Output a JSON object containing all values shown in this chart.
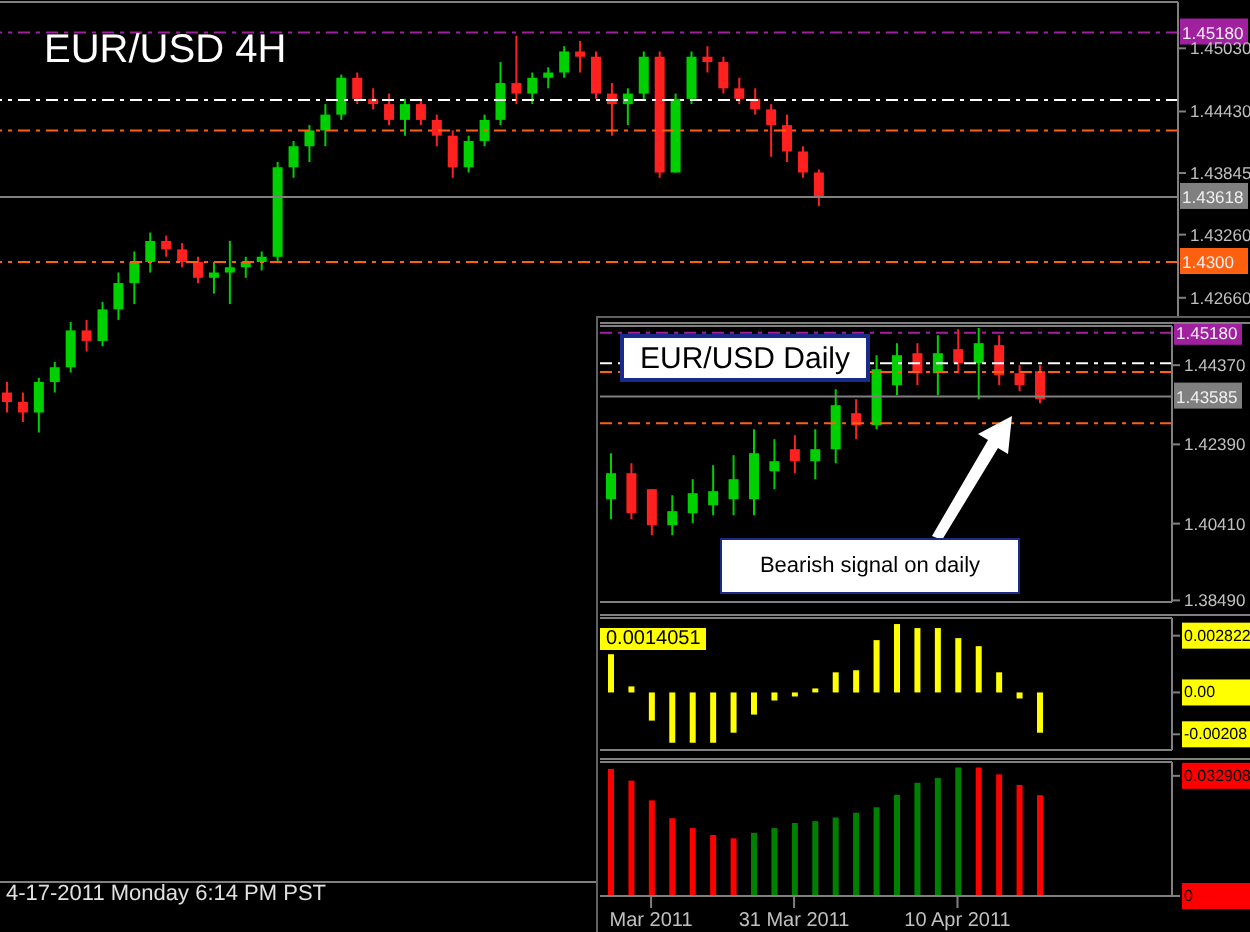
{
  "chart_data": [
    {
      "type": "candlestick",
      "title": "EUR/USD 4H",
      "categories": [
        null,
        null,
        null,
        null,
        null,
        null,
        null,
        null,
        null,
        null,
        null,
        null,
        null,
        null,
        null,
        null,
        null,
        null,
        null,
        null,
        null,
        null,
        null,
        null,
        null,
        null,
        null,
        null,
        null,
        null,
        null,
        null,
        null,
        null,
        null,
        null,
        null,
        null,
        null,
        null,
        null,
        null,
        null,
        null,
        null,
        null,
        null,
        null,
        null,
        null,
        null,
        null,
        null,
        null,
        null,
        null,
        null,
        null,
        null,
        null,
        null,
        null,
        null,
        null,
        null,
        null,
        null,
        null,
        null,
        null,
        null,
        null,
        null,
        null
      ],
      "ohlc": [
        [
          1.4176,
          1.4186,
          1.4157,
          1.4167
        ],
        [
          1.4167,
          1.4176,
          1.4148,
          1.4157
        ],
        [
          1.4157,
          1.419,
          1.4138,
          1.4186
        ],
        [
          1.4186,
          1.4205,
          1.4176,
          1.42
        ],
        [
          1.42,
          1.4243,
          1.4195,
          1.4235
        ],
        [
          1.4235,
          1.4245,
          1.4215,
          1.4225
        ],
        [
          1.4225,
          1.4262,
          1.422,
          1.4255
        ],
        [
          1.4255,
          1.429,
          1.4245,
          1.428
        ],
        [
          1.428,
          1.431,
          1.426,
          1.43
        ],
        [
          1.43,
          1.4328,
          1.429,
          1.432
        ],
        [
          1.432,
          1.4325,
          1.4305,
          1.4312
        ],
        [
          1.4312,
          1.4318,
          1.4295,
          1.43
        ],
        [
          1.43,
          1.4305,
          1.428,
          1.4285
        ],
        [
          1.4285,
          1.43,
          1.427,
          1.429
        ],
        [
          1.429,
          1.432,
          1.426,
          1.4295
        ],
        [
          1.4295,
          1.4305,
          1.4285,
          1.43
        ],
        [
          1.43,
          1.431,
          1.4292,
          1.4305
        ],
        [
          1.4305,
          1.4395,
          1.43,
          1.439
        ],
        [
          1.439,
          1.4415,
          1.438,
          1.441
        ],
        [
          1.441,
          1.443,
          1.4395,
          1.4425
        ],
        [
          1.4425,
          1.445,
          1.441,
          1.444
        ],
        [
          1.444,
          1.4478,
          1.4435,
          1.4475
        ],
        [
          1.4475,
          1.448,
          1.445,
          1.4455
        ],
        [
          1.4455,
          1.4465,
          1.4445,
          1.445
        ],
        [
          1.445,
          1.446,
          1.443,
          1.4435
        ],
        [
          1.4435,
          1.4455,
          1.442,
          1.445
        ],
        [
          1.445,
          1.4455,
          1.443,
          1.4435
        ],
        [
          1.4435,
          1.444,
          1.441,
          1.442
        ],
        [
          1.442,
          1.4425,
          1.438,
          1.439
        ],
        [
          1.439,
          1.442,
          1.4385,
          1.4415
        ],
        [
          1.4415,
          1.444,
          1.441,
          1.4435
        ],
        [
          1.4435,
          1.449,
          1.443,
          1.447
        ],
        [
          1.447,
          1.4515,
          1.445,
          1.446
        ],
        [
          1.446,
          1.448,
          1.445,
          1.4475
        ],
        [
          1.4475,
          1.4485,
          1.4465,
          1.448
        ],
        [
          1.448,
          1.4505,
          1.4475,
          1.45
        ],
        [
          1.45,
          1.451,
          1.448,
          1.4495
        ],
        [
          1.4495,
          1.45,
          1.4455,
          1.446
        ],
        [
          1.446,
          1.447,
          1.442,
          1.445
        ],
        [
          1.445,
          1.4465,
          1.443,
          1.446
        ],
        [
          1.446,
          1.45,
          1.4455,
          1.4495
        ],
        [
          1.4495,
          1.45,
          1.438,
          1.4385
        ],
        [
          1.4385,
          1.446,
          1.4385,
          1.4455
        ],
        [
          1.4455,
          1.45,
          1.445,
          1.4495
        ],
        [
          1.4495,
          1.4505,
          1.448,
          1.449
        ],
        [
          1.449,
          1.4495,
          1.446,
          1.4465
        ],
        [
          1.4465,
          1.4475,
          1.445,
          1.4455
        ],
        [
          1.4455,
          1.4465,
          1.444,
          1.4445
        ],
        [
          1.4445,
          1.445,
          1.44,
          1.443
        ],
        [
          1.443,
          1.444,
          1.4395,
          1.4405
        ],
        [
          1.4405,
          1.441,
          1.438,
          1.4385
        ],
        [
          1.4385,
          1.4388,
          1.4353,
          1.4362
        ],
        null,
        null,
        null,
        null,
        null,
        null,
        null,
        null,
        null,
        null,
        null,
        null,
        null,
        null,
        null,
        null,
        null,
        null,
        null,
        null,
        null,
        null
      ],
      "ylim": [
        1.3711,
        1.4547
      ],
      "yticks": [
        {
          "value": 1.4266,
          "label": "1.42660"
        },
        {
          "value": 1.4326,
          "label": "1.43260"
        },
        1.43845,
        {
          "value": 1.4443,
          "label": "1.44430"
        },
        {
          "value": 1.4503,
          "label": "1.45030"
        }
      ],
      "ref_lines": [
        {
          "axis": "y",
          "value": 1.4518,
          "label": "1.45180",
          "color": "#a020a0",
          "line_style": "dashed"
        },
        {
          "axis": "y",
          "value": 1.4454,
          "color": "#ffffff",
          "line_style": "dashed"
        },
        {
          "axis": "y",
          "value": 1.4425,
          "color": "#ff6010",
          "line_style": "dashed"
        },
        {
          "axis": "y",
          "value": 1.43618,
          "label": "1.43618",
          "color": "#808080",
          "line_style": "solid"
        },
        {
          "axis": "y",
          "value": 1.43,
          "label": "1.4300",
          "color": "#ff6010",
          "line_style": "dashed"
        }
      ],
      "annotations": [
        "4-17-2011 Monday 6:14 PM PST"
      ]
    },
    {
      "type": "candlestick",
      "title": "EUR/USD Daily",
      "categories": [
        null,
        null,
        null,
        null,
        null,
        null,
        null,
        null,
        null,
        null,
        null,
        null,
        null,
        null,
        null,
        null,
        null,
        null,
        null,
        null,
        null,
        null,
        null,
        null,
        null,
        null,
        null,
        null
      ],
      "ohlc": [
        [
          1.4102,
          1.4217,
          1.4052,
          1.4167
        ],
        [
          1.4167,
          1.4192,
          1.4052,
          1.4067
        ],
        [
          1.4127,
          1.4127,
          1.4012,
          1.4037
        ],
        [
          1.4037,
          1.4112,
          1.4012,
          1.4072
        ],
        [
          1.4067,
          1.4152,
          1.4042,
          1.4117
        ],
        [
          1.4087,
          1.4187,
          1.4062,
          1.4122
        ],
        [
          1.4102,
          1.4212,
          1.4062,
          1.4152
        ],
        [
          1.4102,
          1.4277,
          1.4062,
          1.4217
        ],
        [
          1.4172,
          1.4252,
          1.4127,
          1.4197
        ],
        [
          1.4227,
          1.4262,
          1.4167,
          1.4197
        ],
        [
          1.4197,
          1.4277,
          1.4152,
          1.4227
        ],
        [
          1.4227,
          1.4377,
          1.4192,
          1.4337
        ],
        [
          1.4317,
          1.4352,
          1.4252,
          1.4287
        ],
        [
          1.4287,
          1.4462,
          1.4277,
          1.4427
        ],
        [
          1.4387,
          1.4492,
          1.4362,
          1.4462
        ],
        [
          1.4467,
          1.4492,
          1.4387,
          1.4417
        ],
        [
          1.4417,
          1.4512,
          1.4362,
          1.4467
        ],
        [
          1.4477,
          1.4527,
          1.4417,
          1.4442
        ],
        [
          1.4442,
          1.453,
          1.4352,
          1.4492
        ],
        [
          1.4487,
          1.4512,
          1.4387,
          1.4412
        ],
        [
          1.4417,
          1.4437,
          1.4372,
          1.4387
        ],
        [
          1.4422,
          1.4437,
          1.4342,
          1.4352
        ],
        null,
        null,
        null,
        null,
        null,
        null
      ],
      "ylim": [
        1.3845,
        1.4535
      ],
      "yticks": [
        {
          "value": 1.4437,
          "label": "1.44370"
        },
        {
          "value": 1.4239,
          "label": "1.42390"
        },
        {
          "value": 1.4041,
          "label": "1.40410"
        },
        {
          "value": 1.3849,
          "label": "1.38490"
        }
      ],
      "ref_lines": [
        {
          "axis": "y",
          "value": 1.4518,
          "label": "1.45180",
          "color": "#a020a0",
          "line_style": "dashed"
        },
        {
          "axis": "y",
          "value": 1.4442,
          "color": "#ffffff",
          "line_style": "dashed"
        },
        {
          "axis": "y",
          "value": 1.442,
          "color": "#ff6010",
          "line_style": "dashed"
        },
        {
          "axis": "y",
          "value": 1.43585,
          "label": "1.43585",
          "color": "#808080",
          "line_style": "solid"
        },
        {
          "axis": "y",
          "value": 1.4292,
          "color": "#ff6010",
          "line_style": "dashed"
        }
      ],
      "annotations": [
        "Bearish signal on daily"
      ]
    },
    {
      "type": "bar",
      "color": "#ffff00",
      "categories": [
        null,
        null,
        null,
        null,
        null,
        null,
        null,
        null,
        null,
        null,
        null,
        null,
        null,
        null,
        null,
        null,
        null,
        null,
        null,
        null,
        null,
        null,
        null,
        null,
        null,
        null,
        null,
        null
      ],
      "values": [
        0.0019,
        0.0003,
        -0.0014,
        -0.0025,
        -0.0025,
        -0.0025,
        -0.002,
        -0.0011,
        -0.0004,
        -0.0002,
        0.0002,
        0.001,
        0.0011,
        0.0026,
        0.0034,
        0.0032,
        0.0032,
        0.0027,
        0.0023,
        0.001,
        -0.0003,
        -0.002,
        null,
        null,
        null,
        null,
        null,
        null
      ],
      "ylim": [
        -0.00286,
        0.0037
      ],
      "yticks": [
        0.002822,
        {
          "value": 0,
          "label": "0.00"
        },
        -0.00208
      ],
      "annotations": [
        "0.0014051"
      ]
    },
    {
      "type": "bar",
      "categories": [
        null,
        null,
        "Mar 2011",
        null,
        null,
        null,
        null,
        null,
        null,
        "31 Mar 2011",
        null,
        null,
        null,
        null,
        null,
        null,
        null,
        "10 Apr 2011",
        null,
        null,
        null,
        null,
        null,
        null,
        null,
        null,
        null,
        null
      ],
      "values": [
        0.0348,
        0.0316,
        0.0262,
        0.0213,
        0.0186,
        0.0167,
        0.0158,
        0.0173,
        0.0186,
        0.02,
        0.0205,
        0.0215,
        0.0228,
        0.0243,
        0.0277,
        0.031,
        0.0323,
        0.0352,
        0.0352,
        0.0333,
        0.0304,
        0.0276,
        null,
        null,
        null,
        null,
        null,
        null
      ],
      "colors": [
        "#ff0000",
        "#ff0000",
        "#ff0000",
        "#ff0000",
        "#ff0000",
        "#ff0000",
        "#ff0000",
        "#008000",
        "#008000",
        "#008000",
        "#008000",
        "#008000",
        "#008000",
        "#008000",
        "#008000",
        "#008000",
        "#008000",
        "#008000",
        "#ff0000",
        "#ff0000",
        "#ff0000",
        "#ff0000",
        null,
        null,
        null,
        null,
        null,
        null
      ],
      "ylim": [
        0,
        0.0367
      ],
      "yticks": [
        0.032908,
        0
      ]
    }
  ]
}
